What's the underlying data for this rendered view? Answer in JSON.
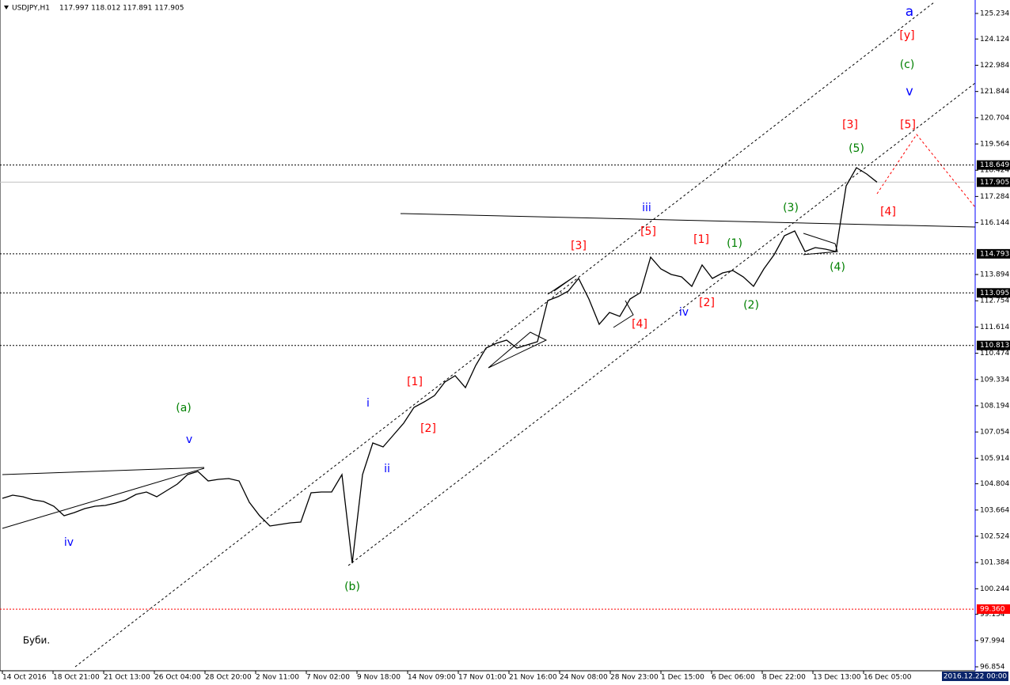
{
  "chart_data": {
    "type": "line",
    "title": "USDJPY,H1",
    "quote": "117.997 118.012 117.891 117.905",
    "ylim": [
      96.854,
      125.234
    ],
    "yticks": [
      125.234,
      124.124,
      122.984,
      121.844,
      120.704,
      119.564,
      118.424,
      117.284,
      116.144,
      113.894,
      112.754,
      111.614,
      110.474,
      109.334,
      108.194,
      107.054,
      105.914,
      104.804,
      103.664,
      102.524,
      101.384,
      100.244,
      99.134,
      97.994,
      96.854
    ],
    "x_labels": [
      "14 Oct 2016",
      "18 Oct 21:00",
      "21 Oct 13:00",
      "26 Oct 04:00",
      "28 Oct 20:00",
      "2 Nov 11:00",
      "7 Nov 02:00",
      "9 Nov 18:00",
      "14 Nov 09:00",
      "17 Nov 01:00",
      "21 Nov 16:00",
      "24 Nov 08:00",
      "28 Nov 23:00",
      "1 Dec 15:00",
      "6 Dec 06:00",
      "8 Dec 22:00",
      "13 Dec 13:00",
      "16 Dec 05:00"
    ],
    "series": [
      {
        "name": "USDJPY",
        "color": "#000000",
        "values": [
          104.172,
          104.31,
          104.241,
          104.104,
          104.035,
          103.829,
          103.416,
          103.554,
          103.726,
          103.829,
          103.863,
          103.966,
          104.104,
          104.344,
          104.447,
          104.241,
          104.516,
          104.791,
          105.203,
          105.34,
          104.928,
          104.997,
          105.031,
          104.928,
          104.0,
          103.416,
          102.97,
          103.038,
          103.107,
          103.142,
          104.413,
          104.447,
          104.447,
          105.203,
          101.355,
          105.203,
          106.577,
          106.406,
          106.921,
          107.436,
          108.123,
          108.364,
          108.639,
          109.223,
          109.498,
          108.982,
          109.944,
          110.7,
          110.906,
          111.044,
          110.7,
          110.838,
          110.975,
          112.762,
          112.933,
          113.174,
          113.724,
          112.83,
          111.731,
          112.246,
          112.075,
          112.83,
          113.105,
          114.651,
          114.136,
          113.896,
          113.792,
          113.38,
          114.308,
          113.724,
          113.964,
          114.067,
          113.792,
          113.38,
          114.136,
          114.755,
          115.579,
          115.785,
          114.892,
          115.064,
          114.995,
          114.892,
          117.744,
          118.534,
          118.259,
          117.905
        ]
      }
    ],
    "last_price": {
      "value": 117.905,
      "color": "#c0c0c0"
    },
    "hlines": [
      {
        "value": 118.649,
        "color": "#000000"
      },
      {
        "value": 114.793,
        "color": "#000000"
      },
      {
        "value": 113.095,
        "color": "#000000"
      },
      {
        "value": 110.813,
        "color": "#000000"
      },
      {
        "value": 99.36,
        "label": "99.360",
        "color": "#ff0000"
      }
    ],
    "annotations": [
      {
        "text": "a",
        "color": "#0000ff"
      },
      {
        "text": "[y]",
        "color": "#ff0000"
      },
      {
        "text": "(c)",
        "color": "#008000"
      },
      {
        "text": "v",
        "color": "#0000ff"
      },
      {
        "text": "[3]",
        "color": "#ff0000"
      },
      {
        "text": "[5]",
        "color": "#ff0000"
      },
      {
        "text": "(5)",
        "color": "#008000"
      },
      {
        "text": "[4]",
        "color": "#ff0000"
      },
      {
        "text": "(3)",
        "color": "#008000"
      },
      {
        "text": "iii",
        "color": "#0000ff"
      },
      {
        "text": "[5]",
        "color": "#ff0000"
      },
      {
        "text": "[1]",
        "color": "#ff0000"
      },
      {
        "text": "(1)",
        "color": "#008000"
      },
      {
        "text": "[3]",
        "color": "#ff0000"
      },
      {
        "text": "(4)",
        "color": "#008000"
      },
      {
        "text": "[2]",
        "color": "#ff0000"
      },
      {
        "text": "(2)",
        "color": "#008000"
      },
      {
        "text": "iv",
        "color": "#0000ff"
      },
      {
        "text": "[4]",
        "color": "#ff0000"
      },
      {
        "text": "[1]",
        "color": "#ff0000"
      },
      {
        "text": "i",
        "color": "#0000ff"
      },
      {
        "text": "[2]",
        "color": "#ff0000"
      },
      {
        "text": "(a)",
        "color": "#008000"
      },
      {
        "text": "v",
        "color": "#0000ff"
      },
      {
        "text": "ii",
        "color": "#0000ff"
      },
      {
        "text": "iv",
        "color": "#0000ff"
      },
      {
        "text": "(b)",
        "color": "#008000"
      },
      {
        "text": "Буби.",
        "color": "#000000"
      }
    ],
    "cursor_time": "2016.12.22 00:00"
  }
}
